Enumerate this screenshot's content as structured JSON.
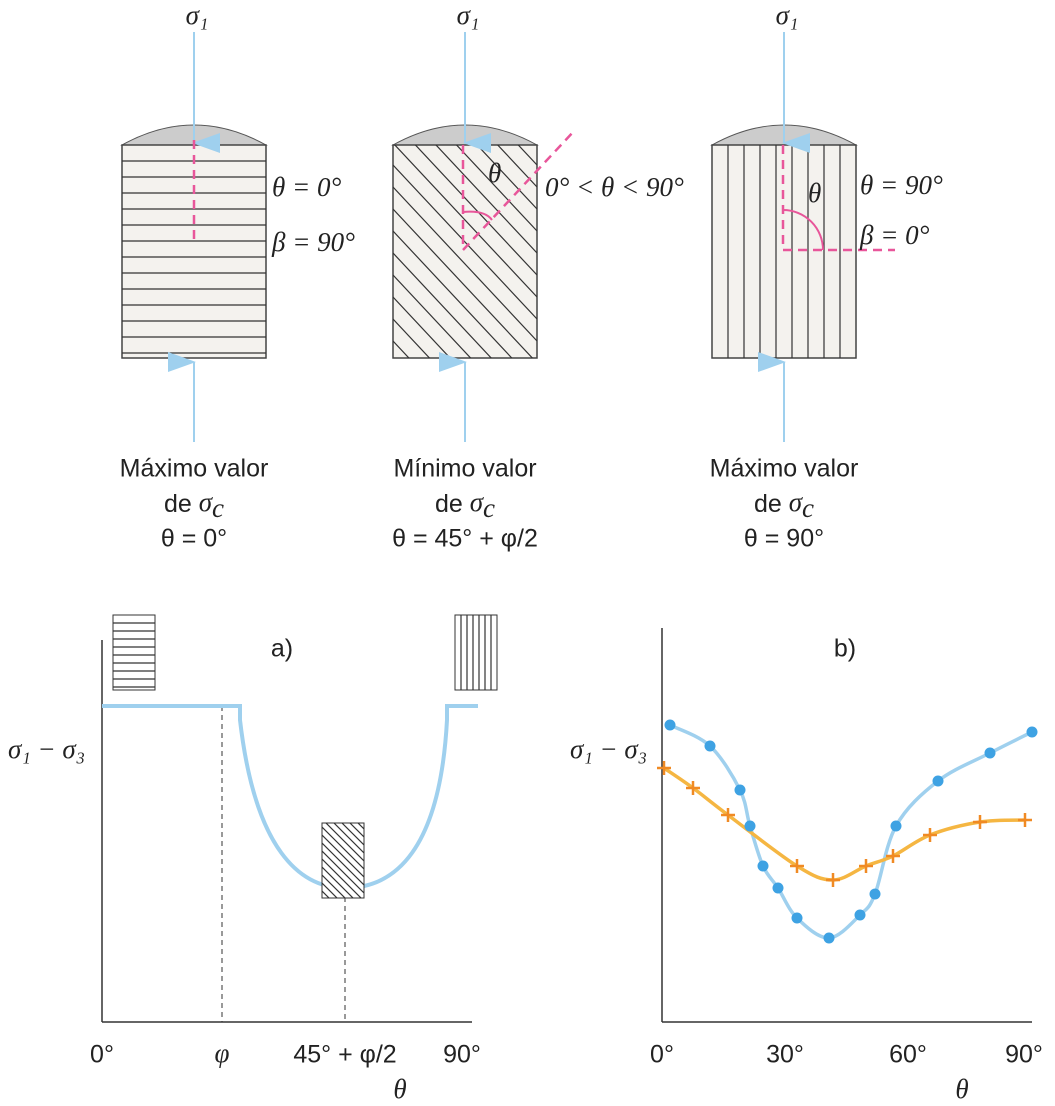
{
  "specimens": [
    {
      "load": "σ₁",
      "angle_labels": [
        "θ = 0°",
        "β = 90°"
      ],
      "caption": {
        "line1": "Máximo valor",
        "de": "de ",
        "sym": "σ",
        "sub": "c",
        "line3": "θ = 0°"
      }
    },
    {
      "load": "σ₁",
      "theta": "θ",
      "angle_labels": [
        "0° < θ < 90°"
      ],
      "caption": {
        "line1": "Mínimo valor",
        "de": "de ",
        "sym": "σ",
        "sub": "c",
        "line3": "θ = 45° + φ/2"
      }
    },
    {
      "load": "σ₁",
      "theta": "θ",
      "angle_labels": [
        "θ = 90°",
        "β = 0°"
      ],
      "caption": {
        "line1": "Máximo valor",
        "de": "de ",
        "sym": "σ",
        "sub": "c",
        "line3": "θ = 90°"
      }
    }
  ],
  "panel_a": {
    "label": "a)",
    "y_label": "σ₁ − σ₃",
    "x_labels": [
      "0°",
      "φ",
      "45° + φ/2",
      "90°"
    ],
    "x_title": "θ"
  },
  "panel_b": {
    "label": "b)",
    "y_label": "σ₁ − σ₃",
    "x_labels": [
      "0°",
      "30°",
      "60°",
      "90°"
    ],
    "x_title": "θ"
  }
}
